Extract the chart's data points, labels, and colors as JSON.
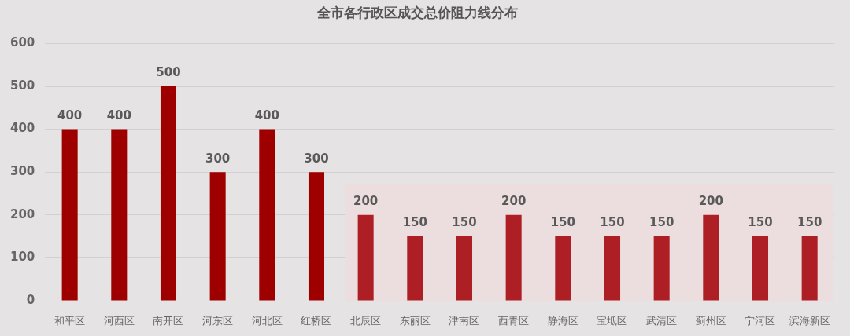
{
  "chart_data": {
    "type": "bar",
    "title": "全市各行政区成交总价阻力线分布",
    "categories": [
      "和平区",
      "河西区",
      "南开区",
      "河东区",
      "河北区",
      "红桥区",
      "北辰区",
      "东丽区",
      "津南区",
      "西青区",
      "静海区",
      "宝坻区",
      "武清区",
      "蓟州区",
      "宁河区",
      "滨海新区"
    ],
    "values": [
      400,
      400,
      500,
      300,
      400,
      300,
      200,
      150,
      150,
      200,
      150,
      150,
      150,
      200,
      150,
      150
    ],
    "colors": [
      "#9e0000",
      "#9e0000",
      "#9e0000",
      "#9e0000",
      "#9e0000",
      "#9e0000",
      "#ad1f24",
      "#ad1f24",
      "#ad1f24",
      "#ad1f24",
      "#ad1f24",
      "#ad1f24",
      "#ad1f24",
      "#ad1f24",
      "#ad1f24",
      "#ad1f24"
    ],
    "ylim": [
      0,
      600
    ],
    "yticks": [
      0,
      100,
      200,
      300,
      400,
      500,
      600
    ],
    "grid": "y",
    "data_labels": true,
    "bands": [
      {
        "axis": "x",
        "from": "北辰区",
        "to": "滨海新区",
        "color": "#ecdede"
      }
    ]
  }
}
